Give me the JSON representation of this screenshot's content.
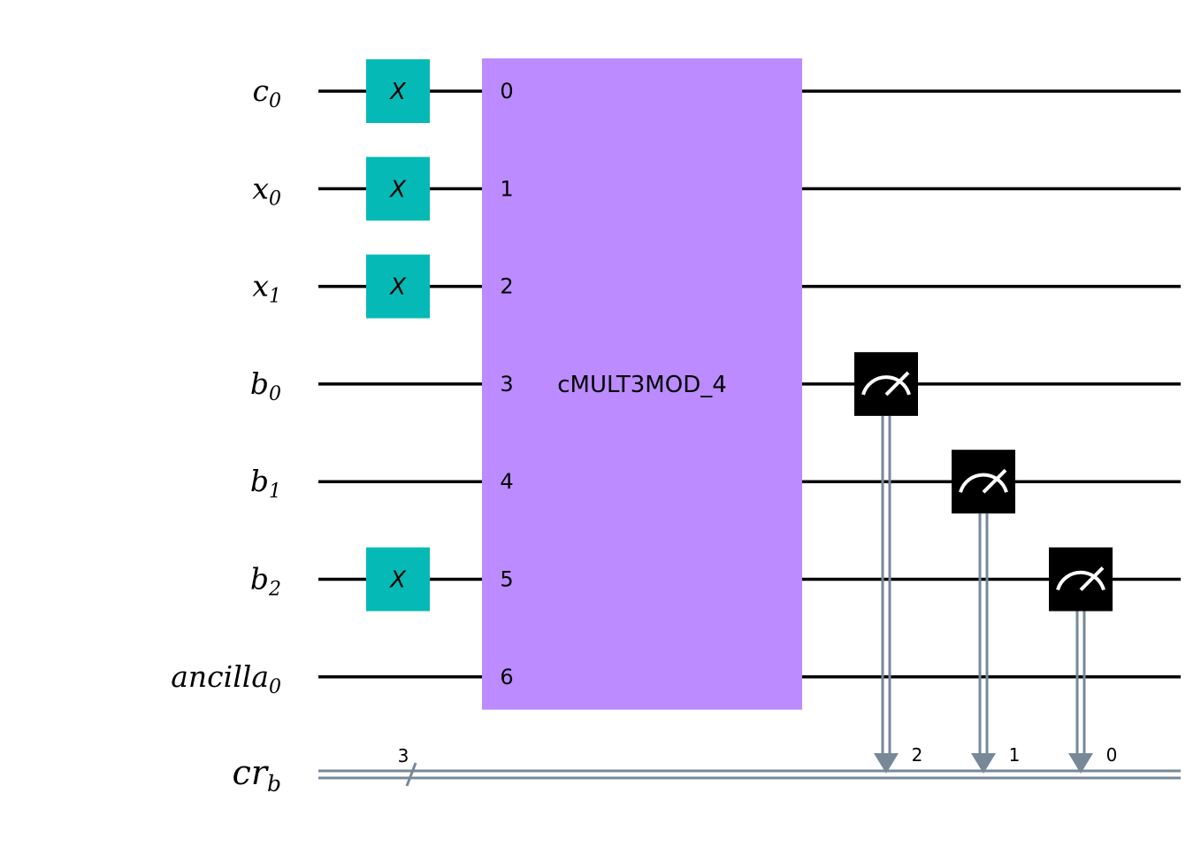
{
  "qubits": [
    {
      "name": "c",
      "sub": "0"
    },
    {
      "name": "x",
      "sub": "0"
    },
    {
      "name": "x",
      "sub": "1"
    },
    {
      "name": "b",
      "sub": "0"
    },
    {
      "name": "b",
      "sub": "1"
    },
    {
      "name": "b",
      "sub": "2"
    },
    {
      "name": "ancilla",
      "sub": "0"
    }
  ],
  "classical": {
    "name": "cr",
    "sub": "b",
    "width": "3"
  },
  "x_gates": [
    {
      "qubit": 0,
      "label": "X"
    },
    {
      "qubit": 1,
      "label": "X"
    },
    {
      "qubit": 2,
      "label": "X"
    },
    {
      "qubit": 5,
      "label": "X"
    }
  ],
  "block": {
    "name": "cMULT3MOD_4",
    "color": "#bb8bff",
    "indices": [
      "0",
      "1",
      "2",
      "3",
      "4",
      "5",
      "6"
    ]
  },
  "measurements": [
    {
      "qubit": 3,
      "bit": "2"
    },
    {
      "qubit": 4,
      "bit": "1"
    },
    {
      "qubit": 5,
      "bit": "0"
    }
  ],
  "colors": {
    "x_gate": "#05bab6",
    "measure": "#000000",
    "classical_wire": "#778899",
    "wire": "#000000"
  }
}
